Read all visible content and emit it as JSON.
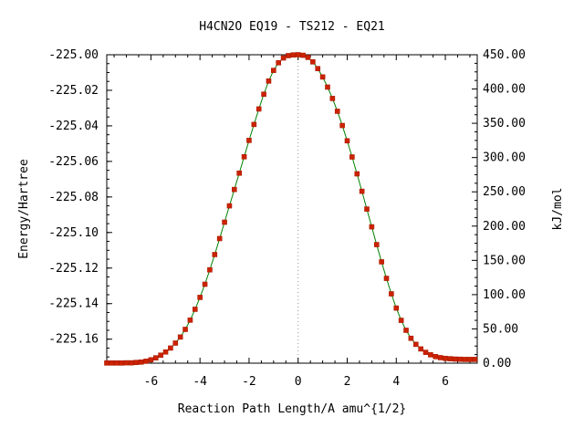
{
  "chart_data": {
    "type": "line",
    "title": "H4CN2O   EQ19 - TS212 - EQ21",
    "xlabel": "Reaction Path Length/A amu^{1/2}",
    "ylabel": "Energy/Hartree",
    "y2label": "kJ/mol",
    "xlim": [
      -7.8,
      7.3
    ],
    "ylim": [
      -225.1735,
      -225.0
    ],
    "y2lim": [
      0.0,
      450.0
    ],
    "xticks": [
      -6,
      -4,
      -2,
      0,
      2,
      4,
      6
    ],
    "yticks": [
      "-225.00",
      "-225.02",
      "-225.04",
      "-225.06",
      "-225.08",
      "-225.10",
      "-225.12",
      "-225.14",
      "-225.16"
    ],
    "y2ticks": [
      "450.00",
      "400.00",
      "350.00",
      "300.00",
      "250.00",
      "200.00",
      "150.00",
      "100.00",
      "50.00",
      "0.00"
    ],
    "ts_x": 0,
    "grid": false,
    "line_color": "#008000",
    "marker_color": "#cc2200",
    "series": [
      {
        "x": [
          -7.8,
          -7.6,
          -7.4,
          -7.2,
          -7.0,
          -6.8,
          -6.6,
          -6.4,
          -6.2,
          -6.0,
          -5.8,
          -5.6,
          -5.4,
          -5.2,
          -5.0,
          -4.8,
          -4.6,
          -4.4,
          -4.2,
          -4.0,
          -3.8,
          -3.6,
          -3.4,
          -3.2,
          -3.0,
          -2.8,
          -2.6,
          -2.4,
          -2.2,
          -2.0,
          -1.8,
          -1.6,
          -1.4,
          -1.2,
          -1.0,
          -0.8,
          -0.6,
          -0.4,
          -0.2,
          0.0,
          0.2,
          0.4,
          0.6,
          0.8,
          1.0,
          1.2,
          1.4,
          1.6,
          1.8,
          2.0,
          2.2,
          2.4,
          2.6,
          2.8,
          3.0,
          3.2,
          3.4,
          3.6,
          3.8,
          4.0,
          4.2,
          4.4,
          4.6,
          4.8,
          5.0,
          5.2,
          5.4,
          5.6,
          5.8,
          6.0,
          6.2,
          6.4,
          6.6,
          6.8,
          7.0,
          7.2
        ],
        "y": [
          -225.1734,
          -225.1734,
          -225.1734,
          -225.1734,
          -225.1733,
          -225.1733,
          -225.1731,
          -225.1729,
          -225.1724,
          -225.1716,
          -225.1705,
          -225.169,
          -225.1672,
          -225.165,
          -225.1622,
          -225.1588,
          -225.1545,
          -225.1493,
          -225.1432,
          -225.1365,
          -225.1291,
          -225.121,
          -225.1124,
          -225.1034,
          -225.0942,
          -225.085,
          -225.0758,
          -225.0666,
          -225.0574,
          -225.0482,
          -225.0392,
          -225.0305,
          -225.0222,
          -225.0148,
          -225.0088,
          -225.0045,
          -225.0018,
          -225.0005,
          -225.0001,
          -225.0,
          -225.0003,
          -225.0015,
          -225.004,
          -225.0078,
          -225.0125,
          -225.0182,
          -225.0246,
          -225.0318,
          -225.0398,
          -225.0484,
          -225.0575,
          -225.067,
          -225.0768,
          -225.0868,
          -225.0968,
          -225.1068,
          -225.1165,
          -225.1258,
          -225.1345,
          -225.1425,
          -225.1494,
          -225.155,
          -225.1595,
          -225.1629,
          -225.1655,
          -225.1674,
          -225.1688,
          -225.1698,
          -225.1704,
          -225.1708,
          -225.171,
          -225.1712,
          -225.1713,
          -225.1714,
          -225.1714,
          -225.1714
        ]
      }
    ]
  }
}
